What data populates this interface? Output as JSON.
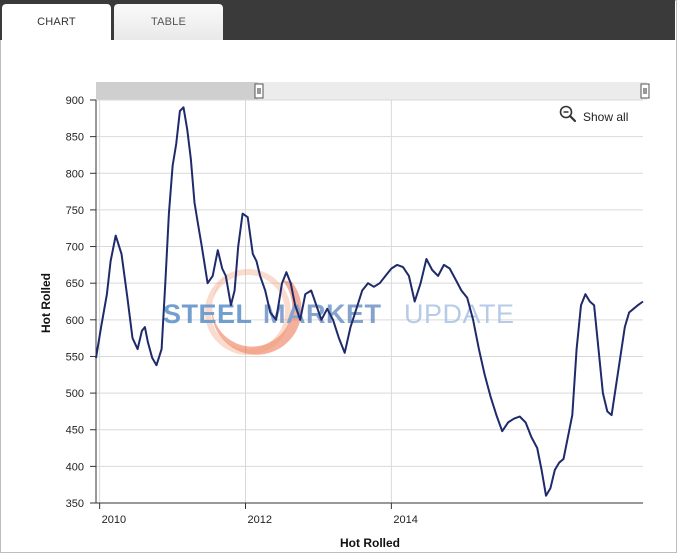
{
  "tabs": [
    {
      "label": "CHART",
      "active": true
    },
    {
      "label": "TABLE",
      "active": false
    }
  ],
  "controls": {
    "show_all_label": "Show all",
    "zoom_icon": "zoom-out-magnifier-icon"
  },
  "navigator": {
    "selected_fraction": [
      0.3,
      1.0
    ]
  },
  "watermark": {
    "word1": "STEEL",
    "word2": "MARKET",
    "word3": "UPDATE",
    "colors": {
      "word1": "#5b8ec8",
      "word2": "#6f93c5",
      "word3": "#a9c2e3",
      "swirl": "#e8562a"
    }
  },
  "chart_data": {
    "type": "line",
    "ylabel": "Hot Rolled",
    "xlabel": "Hot Rolled",
    "ylim": [
      350,
      900
    ],
    "xlim": [
      2009.95,
      2017.45
    ],
    "yticks": [
      350,
      400,
      450,
      500,
      550,
      600,
      650,
      700,
      750,
      800,
      850,
      900
    ],
    "xticks": [
      {
        "value": 2010,
        "label": "2010"
      },
      {
        "value": 2012,
        "label": "2012"
      },
      {
        "value": 2014,
        "label": "2014"
      }
    ],
    "grid": true,
    "line_color": "#1f2a6b",
    "series": [
      {
        "x": [
          2009.95,
          2010.02,
          2010.1,
          2010.15,
          2010.22,
          2010.3,
          2010.38,
          2010.45,
          2010.52,
          2010.58,
          2010.62,
          2010.66,
          2010.72,
          2010.78,
          2010.85,
          2010.9,
          2010.95,
          2011.0,
          2011.05,
          2011.1,
          2011.15,
          2011.2,
          2011.25,
          2011.3,
          2011.35,
          2011.4,
          2011.48,
          2011.55,
          2011.62,
          2011.68,
          2011.73,
          2011.8,
          2011.85,
          2011.9,
          2011.96,
          2012.03,
          2012.1,
          2012.15,
          2012.2,
          2012.27,
          2012.34,
          2012.42,
          2012.5,
          2012.56,
          2012.62,
          2012.68,
          2012.75,
          2012.82,
          2012.9,
          2012.97,
          2013.04,
          2013.12,
          2013.2,
          2013.28,
          2013.36,
          2013.44,
          2013.52,
          2013.6,
          2013.68,
          2013.76,
          2013.84,
          2013.92,
          2014.0,
          2014.08,
          2014.16,
          2014.24,
          2014.32,
          2014.4,
          2014.48,
          2014.56,
          2014.64,
          2014.72,
          2014.8,
          2014.88,
          2014.96,
          2015.04,
          2015.12,
          2015.2,
          2015.28,
          2015.36,
          2015.44,
          2015.52,
          2015.6,
          2015.68,
          2015.76,
          2015.84,
          2015.92,
          2016.0,
          2016.06,
          2016.12,
          2016.18,
          2016.24,
          2016.3,
          2016.36,
          2016.42,
          2016.48,
          2016.54,
          2016.6,
          2016.66,
          2016.72,
          2016.78,
          2016.84,
          2016.9,
          2016.96,
          2017.02,
          2017.08,
          2017.14,
          2017.2,
          2017.26,
          2017.32,
          2017.38,
          2017.45
        ],
        "y": [
          548,
          590,
          635,
          680,
          715,
          690,
          630,
          575,
          560,
          585,
          590,
          570,
          548,
          538,
          560,
          650,
          745,
          810,
          840,
          885,
          890,
          860,
          820,
          760,
          730,
          700,
          650,
          660,
          695,
          670,
          660,
          620,
          640,
          700,
          745,
          740,
          690,
          680,
          660,
          640,
          610,
          600,
          650,
          665,
          650,
          620,
          600,
          635,
          640,
          620,
          600,
          615,
          600,
          575,
          555,
          590,
          615,
          640,
          650,
          645,
          650,
          660,
          670,
          675,
          672,
          660,
          625,
          650,
          683,
          668,
          660,
          675,
          670,
          655,
          640,
          630,
          600,
          560,
          525,
          495,
          470,
          448,
          460,
          465,
          468,
          460,
          440,
          425,
          395,
          360,
          370,
          395,
          405,
          410,
          440,
          470,
          560,
          620,
          635,
          625,
          620,
          560,
          500,
          475,
          470,
          510,
          550,
          590,
          610,
          615,
          620,
          625
        ]
      }
    ]
  }
}
